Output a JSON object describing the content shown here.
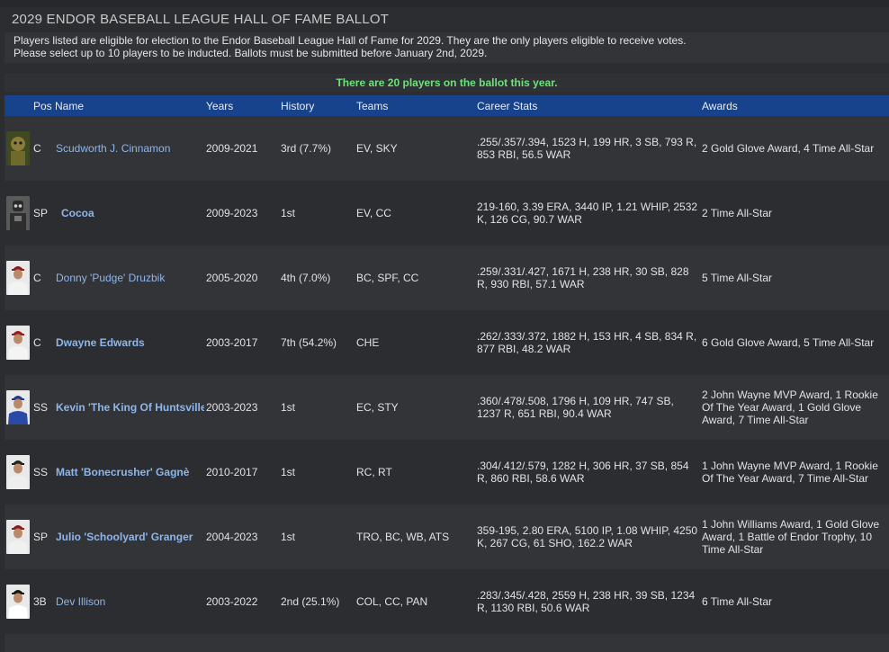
{
  "page": {
    "title": "2029 ENDOR BASEBALL LEAGUE HALL OF FAME BALLOT",
    "info_line1": "Players listed are eligible for election to the Endor Baseball League Hall of Fame for 2029. They are the only players eligible to receive votes.",
    "info_line2": "Please select up to 10 players to be inducted. Ballots must be submitted before January 2nd, 2029.",
    "ballot_count": "There are 20 players on the ballot this year."
  },
  "columns": {
    "pos_name": "Pos Name",
    "years": "Years",
    "history": "History",
    "teams": "Teams",
    "career_stats": "Career Stats",
    "awards": "Awards"
  },
  "players": [
    {
      "pos": "C",
      "name": "Scudworth J. Cinnamon",
      "years": "2009-2021",
      "history": "3rd (7.7%)",
      "teams": "EV, SKY",
      "stats": ".255/.357/.394, 1523 H, 199 HR, 3 SB, 793 R, 853 RBI, 56.5 WAR",
      "awards": "2 Gold Glove Award, 4 Time All-Star",
      "portrait": "animal-creature-portrait"
    },
    {
      "pos": "SP",
      "name": "Cocoa",
      "years": "2009-2023",
      "history": "1st",
      "teams": "EV, CC",
      "stats": "219-160, 3.39 ERA, 3440 IP, 1.21 WHIP, 2532 K, 126 CG, 90.7 WAR",
      "awards": "2 Time All-Star",
      "portrait": "robot-portrait"
    },
    {
      "pos": "C",
      "name": "Donny 'Pudge' Druzbik",
      "years": "2005-2020",
      "history": "4th (7.0%)",
      "teams": "BC, SPF, CC",
      "stats": ".259/.331/.427, 1671 H, 238 HR, 30 SB, 828 R, 930 RBI, 57.1 WAR",
      "awards": "5 Time All-Star",
      "portrait": "player-portrait"
    },
    {
      "pos": "C",
      "name": "Dwayne Edwards",
      "years": "2003-2017",
      "history": "7th (54.2%)",
      "teams": "CHE",
      "stats": ".262/.333/.372, 1882 H, 153 HR, 4 SB, 834 R, 877 RBI, 48.2 WAR",
      "awards": "6 Gold Glove Award, 5 Time All-Star",
      "portrait": "player-portrait"
    },
    {
      "pos": "SS",
      "name": "Kevin 'The King Of Huntsville'",
      "years": "2003-2023",
      "history": "1st",
      "teams": "EC, STY",
      "stats": ".360/.478/.508, 1796 H, 109 HR, 747 SB, 1237 R, 651 RBI, 90.4 WAR",
      "awards": "2 John Wayne MVP Award, 1 Rookie Of The Year Award, 1 Gold Glove Award, 7 Time All-Star",
      "portrait": "player-portrait"
    },
    {
      "pos": "SS",
      "name": "Matt 'Bonecrusher' Gagnè",
      "years": "2010-2017",
      "history": "1st",
      "teams": "RC, RT",
      "stats": ".304/.412/.579, 1282 H, 306 HR, 37 SB, 854 R, 860 RBI, 58.6 WAR",
      "awards": "1 John Wayne MVP Award, 1 Rookie Of The Year Award, 7 Time All-Star",
      "portrait": "player-portrait"
    },
    {
      "pos": "SP",
      "name": "Julio 'Schoolyard' Granger",
      "years": "2004-2023",
      "history": "1st",
      "teams": "TRO, BC, WB, ATS",
      "stats": "359-195, 2.80 ERA, 5100 IP, 1.08 WHIP, 4250 K, 267 CG, 61 SHO, 162.2 WAR",
      "awards": "1 John Williams Award, 1 Gold Glove Award, 1 Battle of Endor Trophy, 10 Time All-Star",
      "portrait": "player-portrait"
    },
    {
      "pos": "3B",
      "name": "Dev Illison",
      "years": "2003-2022",
      "history": "2nd (25.1%)",
      "teams": "COL, CC, PAN",
      "stats": ".283/.345/.428, 2559 H, 238 HR, 39 SB, 1234 R, 1130 RBI, 50.6 WAR",
      "awards": "6 Time All-Star",
      "portrait": "player-portrait"
    }
  ]
}
